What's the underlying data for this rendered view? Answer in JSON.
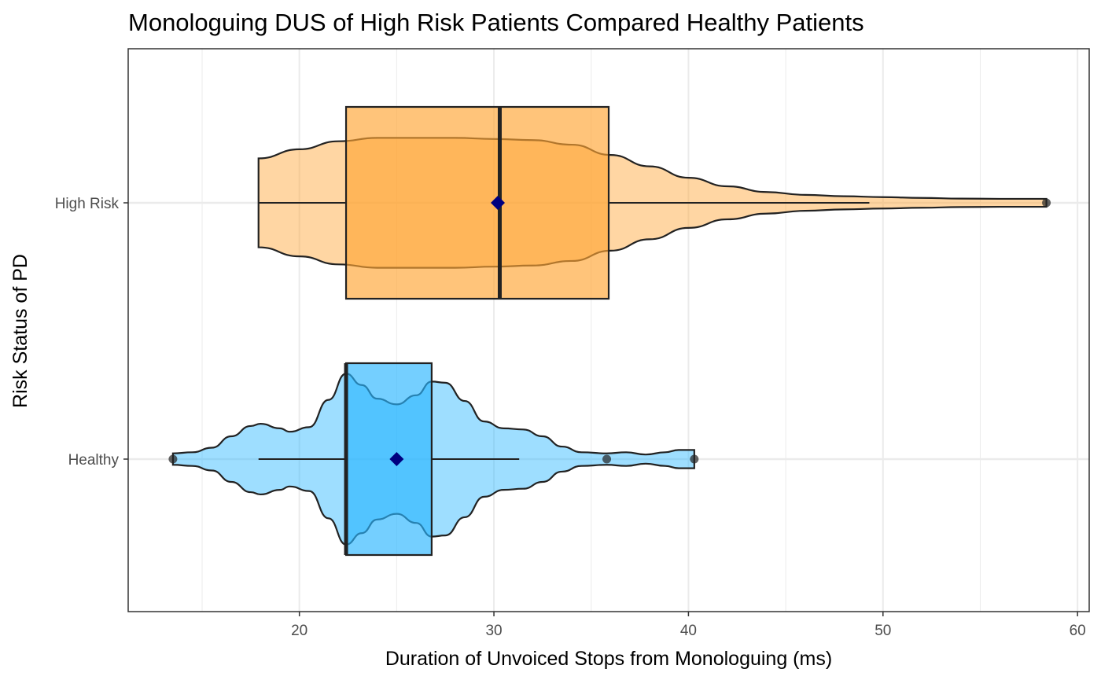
{
  "chart_data": {
    "type": "violin+box",
    "orientation": "horizontal",
    "title": "Monologuing DUS of High Risk Patients Compared Healthy Patients",
    "xlabel": "Duration of Unvoiced Stops from Monologuing (ms)",
    "ylabel": "Risk Status of PD",
    "xlim": [
      11.2,
      60.6
    ],
    "x_ticks": [
      20,
      30,
      40,
      50,
      60
    ],
    "x_minor_ticks": [
      15,
      25,
      35,
      45,
      55
    ],
    "categories": [
      "High Risk",
      "Healthy"
    ],
    "grid": true,
    "legend": "none",
    "series": [
      {
        "name": "High Risk",
        "fill": "#FFA533",
        "box": {
          "q1": 22.4,
          "median": 30.3,
          "q3": 35.9,
          "whisker_low": 17.9,
          "whisker_high": 49.3
        },
        "mean": 30.2,
        "outliers": [
          58.4
        ],
        "violin": {
          "range": [
            17.9,
            58.4
          ],
          "profile": [
            [
              17.9,
              0.39
            ],
            [
              20.0,
              0.47
            ],
            [
              22.0,
              0.54
            ],
            [
              24.0,
              0.57
            ],
            [
              26.0,
              0.57
            ],
            [
              28.0,
              0.57
            ],
            [
              30.0,
              0.56
            ],
            [
              32.0,
              0.55
            ],
            [
              34.0,
              0.51
            ],
            [
              36.0,
              0.42
            ],
            [
              38.0,
              0.32
            ],
            [
              40.0,
              0.22
            ],
            [
              42.0,
              0.145
            ],
            [
              44.0,
              0.095
            ],
            [
              46.0,
              0.07
            ],
            [
              48.0,
              0.058
            ],
            [
              50.0,
              0.05
            ],
            [
              52.0,
              0.043
            ],
            [
              54.0,
              0.037
            ],
            [
              56.0,
              0.035
            ],
            [
              58.4,
              0.035
            ]
          ]
        }
      },
      {
        "name": "Healthy",
        "fill": "#29B6FF",
        "box": {
          "q1": 22.4,
          "median": 22.4,
          "q3": 26.8,
          "whisker_low": 17.9,
          "whisker_high": 31.3
        },
        "mean": 25.0,
        "outliers": [
          13.5,
          35.8,
          40.3
        ],
        "violin": {
          "range": [
            13.5,
            40.3
          ],
          "profile": [
            [
              13.5,
              0.05
            ],
            [
              14.5,
              0.06
            ],
            [
              15.5,
              0.1
            ],
            [
              16.5,
              0.2
            ],
            [
              17.5,
              0.29
            ],
            [
              18.0,
              0.31
            ],
            [
              19.0,
              0.27
            ],
            [
              19.5,
              0.24
            ],
            [
              20.5,
              0.28
            ],
            [
              21.5,
              0.52
            ],
            [
              22.4,
              0.75
            ],
            [
              23.2,
              0.65
            ],
            [
              24.0,
              0.53
            ],
            [
              25.0,
              0.48
            ],
            [
              26.0,
              0.56
            ],
            [
              26.8,
              0.68
            ],
            [
              27.5,
              0.67
            ],
            [
              28.5,
              0.51
            ],
            [
              29.5,
              0.33
            ],
            [
              30.5,
              0.27
            ],
            [
              31.5,
              0.26
            ],
            [
              32.5,
              0.2
            ],
            [
              33.5,
              0.11
            ],
            [
              34.5,
              0.06
            ],
            [
              35.8,
              0.05
            ],
            [
              36.8,
              0.06
            ],
            [
              37.8,
              0.04
            ],
            [
              38.8,
              0.06
            ],
            [
              39.5,
              0.08
            ],
            [
              40.3,
              0.08
            ]
          ]
        }
      }
    ]
  }
}
